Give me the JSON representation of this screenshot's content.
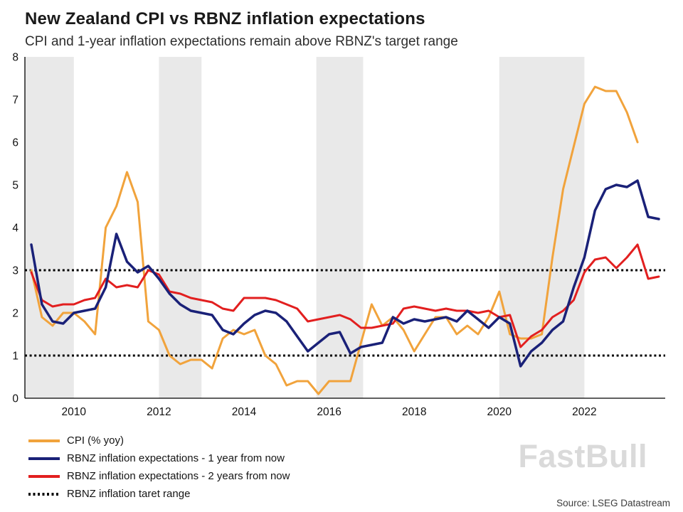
{
  "header": {
    "title": "New Zealand CPI vs RBNZ inflation expectations",
    "subtitle": "CPI and 1-year inflation expectations remain above RBNZ's target range"
  },
  "chart_data": {
    "type": "line",
    "title": "New Zealand CPI vs RBNZ inflation expectations",
    "subtitle": "CPI and 1-year inflation expectations remain above RBNZ's target range",
    "xlabel": "",
    "ylabel": "",
    "x_start": 2009.0,
    "x_step": 0.25,
    "x_range": [
      2008.85,
      2023.9
    ],
    "y_range": [
      0,
      8
    ],
    "y_ticks": [
      0,
      1,
      2,
      3,
      4,
      5,
      6,
      7,
      8
    ],
    "x_ticks": [
      2010,
      2012,
      2014,
      2016,
      2018,
      2020,
      2022
    ],
    "grid": false,
    "legend_position": "bottom-left",
    "target_range_lines": [
      1,
      3
    ],
    "band_color": "#e9e9e9",
    "shaded_bands": [
      [
        2008.85,
        2010.0
      ],
      [
        2012.0,
        2013.0
      ],
      [
        2015.7,
        2016.8
      ],
      [
        2020.0,
        2022.0
      ]
    ],
    "series": [
      {
        "id": "cpi",
        "name": "CPI (% yoy)",
        "color": "#F1A33C",
        "width": 3,
        "values": [
          3.0,
          1.9,
          1.7,
          2.0,
          2.0,
          1.8,
          1.5,
          4.0,
          4.5,
          5.3,
          4.6,
          1.8,
          1.6,
          1.0,
          0.8,
          0.9,
          0.9,
          0.7,
          1.4,
          1.6,
          1.5,
          1.6,
          1.0,
          0.8,
          0.3,
          0.4,
          0.4,
          0.1,
          0.4,
          0.4,
          0.4,
          1.3,
          2.2,
          1.7,
          1.9,
          1.6,
          1.1,
          1.5,
          1.9,
          1.9,
          1.5,
          1.7,
          1.5,
          1.9,
          2.5,
          1.5,
          1.4,
          1.4,
          1.5,
          3.3,
          4.9,
          5.9,
          6.9,
          7.3,
          7.2,
          7.2,
          6.7,
          6.0,
          null,
          null
        ]
      },
      {
        "id": "rbnz-2yr",
        "name": "RBNZ inflation expectations - 2 years from now",
        "color": "#E21F1F",
        "width": 3,
        "values": [
          2.95,
          2.3,
          2.15,
          2.2,
          2.2,
          2.3,
          2.35,
          2.8,
          2.6,
          2.65,
          2.6,
          3.0,
          2.9,
          2.5,
          2.45,
          2.35,
          2.3,
          2.25,
          2.1,
          2.05,
          2.35,
          2.35,
          2.35,
          2.3,
          2.2,
          2.1,
          1.8,
          1.85,
          1.9,
          1.95,
          1.85,
          1.65,
          1.65,
          1.7,
          1.75,
          2.1,
          2.15,
          2.1,
          2.05,
          2.1,
          2.05,
          2.05,
          2.0,
          2.05,
          1.9,
          1.95,
          1.2,
          1.45,
          1.6,
          1.9,
          2.05,
          2.3,
          2.95,
          3.25,
          3.3,
          3.05,
          3.3,
          3.6,
          2.8,
          2.85
        ]
      },
      {
        "id": "rbnz-1yr",
        "name": "RBNZ inflation expectations - 1 year from now",
        "color": "#1A2178",
        "width": 3.5,
        "values": [
          3.6,
          2.2,
          1.8,
          1.75,
          2.0,
          2.05,
          2.1,
          2.6,
          3.85,
          3.2,
          2.95,
          3.1,
          2.8,
          2.45,
          2.2,
          2.05,
          2.0,
          1.95,
          1.6,
          1.5,
          1.75,
          1.95,
          2.05,
          2.0,
          1.8,
          1.45,
          1.1,
          1.3,
          1.5,
          1.55,
          1.05,
          1.2,
          1.25,
          1.3,
          1.9,
          1.75,
          1.85,
          1.8,
          1.85,
          1.9,
          1.8,
          2.05,
          1.85,
          1.65,
          1.9,
          1.75,
          0.75,
          1.1,
          1.3,
          1.6,
          1.8,
          2.6,
          3.3,
          4.4,
          4.9,
          5.0,
          4.95,
          5.1,
          4.25,
          4.2
        ]
      }
    ]
  },
  "legend": {
    "items": [
      {
        "id": "cpi",
        "label": "CPI (% yoy)",
        "color": "#F1A33C",
        "style": "solid"
      },
      {
        "id": "rbnz-1yr",
        "label": "RBNZ inflation expectations - 1 year from now",
        "color": "#1A2178",
        "style": "solid"
      },
      {
        "id": "rbnz-2yr",
        "label": "RBNZ inflation expectations - 2 years from now",
        "color": "#E21F1F",
        "style": "solid"
      },
      {
        "id": "target-range",
        "label": "RBNZ inflation taret range",
        "color": "#000000",
        "style": "dotted"
      }
    ]
  },
  "watermark": "FastBull",
  "source": "Source: LSEG Datastream"
}
